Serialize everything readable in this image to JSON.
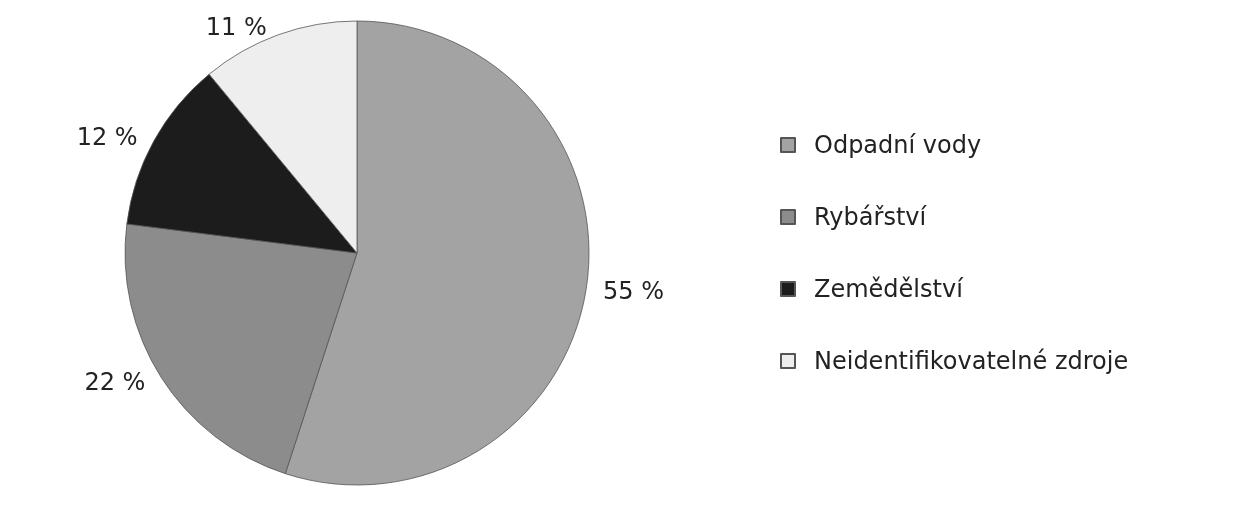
{
  "chart_data": {
    "type": "pie",
    "categories": [
      "Odpadní vody",
      "Rybářství",
      "Zemědělství",
      "Neidentifikovatelné zdroje"
    ],
    "values": [
      55,
      22,
      12,
      11
    ],
    "value_labels": [
      "55 %",
      "22 %",
      "12 %",
      "11 %"
    ],
    "colors": [
      "#a3a3a3",
      "#8c8c8c",
      "#1c1c1c",
      "#eeeeee"
    ],
    "legend": "right"
  }
}
